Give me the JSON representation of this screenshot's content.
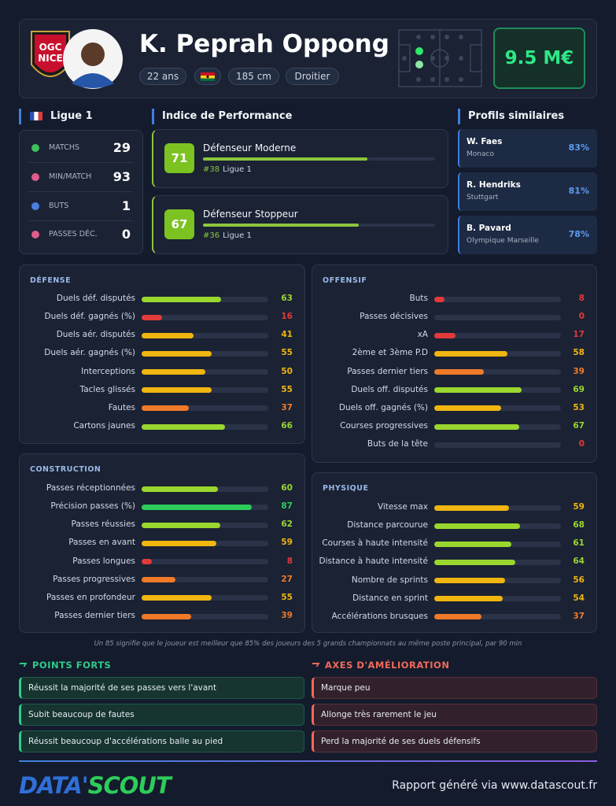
{
  "header": {
    "crest": [
      "OGC",
      "NICE"
    ],
    "name": "K. Peprah Oppong",
    "tags": [
      "22 ans",
      "185 cm",
      "Droitier"
    ],
    "value": "9.5 M€"
  },
  "league": {
    "title": "Ligue 1",
    "stats": [
      {
        "label": "MATCHS",
        "value": 29
      },
      {
        "label": "MIN/MATCH",
        "value": 93
      },
      {
        "label": "BUTS",
        "value": 1
      },
      {
        "label": "PASSES DÉC.",
        "value": 0
      }
    ]
  },
  "performance": {
    "title": "Indice de Performance",
    "items": [
      {
        "score": 71,
        "name": "Défenseur Moderne",
        "rank": "#38",
        "league": "Ligue 1"
      },
      {
        "score": 67,
        "name": "Défenseur Stoppeur",
        "rank": "#36",
        "league": "Ligue 1"
      }
    ]
  },
  "similar": {
    "title": "Profils similaires",
    "items": [
      {
        "name": "W. Faes",
        "club": "Monaco",
        "match": "83%"
      },
      {
        "name": "R. Hendriks",
        "club": "Stuttgart",
        "match": "81%"
      },
      {
        "name": "B. Pavard",
        "club": "Olympique Marseille",
        "match": "78%"
      }
    ]
  },
  "sections": [
    {
      "title": "DÉFENSE",
      "rows": [
        {
          "label": "Duels déf. disputés",
          "value": 63
        },
        {
          "label": "Duels déf. gagnés (%)",
          "value": 16
        },
        {
          "label": "Duels aér. disputés",
          "value": 41
        },
        {
          "label": "Duels aér. gagnés (%)",
          "value": 55
        },
        {
          "label": "Interceptions",
          "value": 50
        },
        {
          "label": "Tacles glissés",
          "value": 55
        },
        {
          "label": "Fautes",
          "value": 37
        },
        {
          "label": "Cartons jaunes",
          "value": 66
        }
      ]
    },
    {
      "title": "OFFENSIF",
      "rows": [
        {
          "label": "Buts",
          "value": 8
        },
        {
          "label": "Passes décisives",
          "value": 0
        },
        {
          "label": "xA",
          "value": 17
        },
        {
          "label": "2ème et 3ème P.D",
          "value": 58
        },
        {
          "label": "Passes dernier tiers",
          "value": 39
        },
        {
          "label": "Duels off. disputés",
          "value": 69
        },
        {
          "label": "Duels off. gagnés (%)",
          "value": 53
        },
        {
          "label": "Courses progressives",
          "value": 67
        },
        {
          "label": "Buts de la tête",
          "value": 0
        }
      ]
    },
    {
      "title": "CONSTRUCTION",
      "rows": [
        {
          "label": "Passes réceptionnées",
          "value": 60
        },
        {
          "label": "Précision passes (%)",
          "value": 87
        },
        {
          "label": "Passes réussies",
          "value": 62
        },
        {
          "label": "Passes en avant",
          "value": 59
        },
        {
          "label": "Passes longues",
          "value": 8
        },
        {
          "label": "Passes progressives",
          "value": 27
        },
        {
          "label": "Passes en profondeur",
          "value": 55
        },
        {
          "label": "Passes dernier tiers",
          "value": 39
        }
      ]
    },
    {
      "title": "PHYSIQUE",
      "rows": [
        {
          "label": "Vitesse max",
          "value": 59
        },
        {
          "label": "Distance parcourue",
          "value": 68
        },
        {
          "label": "Courses à haute intensité",
          "value": 61
        },
        {
          "label": "Distance à haute intensité",
          "value": 64
        },
        {
          "label": "Nombre de sprints",
          "value": 56
        },
        {
          "label": "Distance en sprint",
          "value": 54
        },
        {
          "label": "Accélérations brusques",
          "value": 37
        }
      ]
    }
  ],
  "note": "Un 85 signifie que le joueur est meilleur que 85% des joueurs des 5 grands championnats au même poste principal, par 90 min",
  "strengths": {
    "title": "POINTS FORTS",
    "items": [
      "Réussit la majorité de ses passes vers l'avant",
      "Subit beaucoup de fautes",
      "Réussit beaucoup d'accélérations balle au pied"
    ]
  },
  "improvements": {
    "title": "AXES D'AMÉLIORATION",
    "items": [
      "Marque peu",
      "Allonge très rarement le jeu",
      "Perd la majorité de ses duels défensifs"
    ]
  },
  "footer": {
    "brand": [
      "DATA'",
      "SCOUT"
    ],
    "credit": "Rapport généré via www.datascout.fr"
  }
}
